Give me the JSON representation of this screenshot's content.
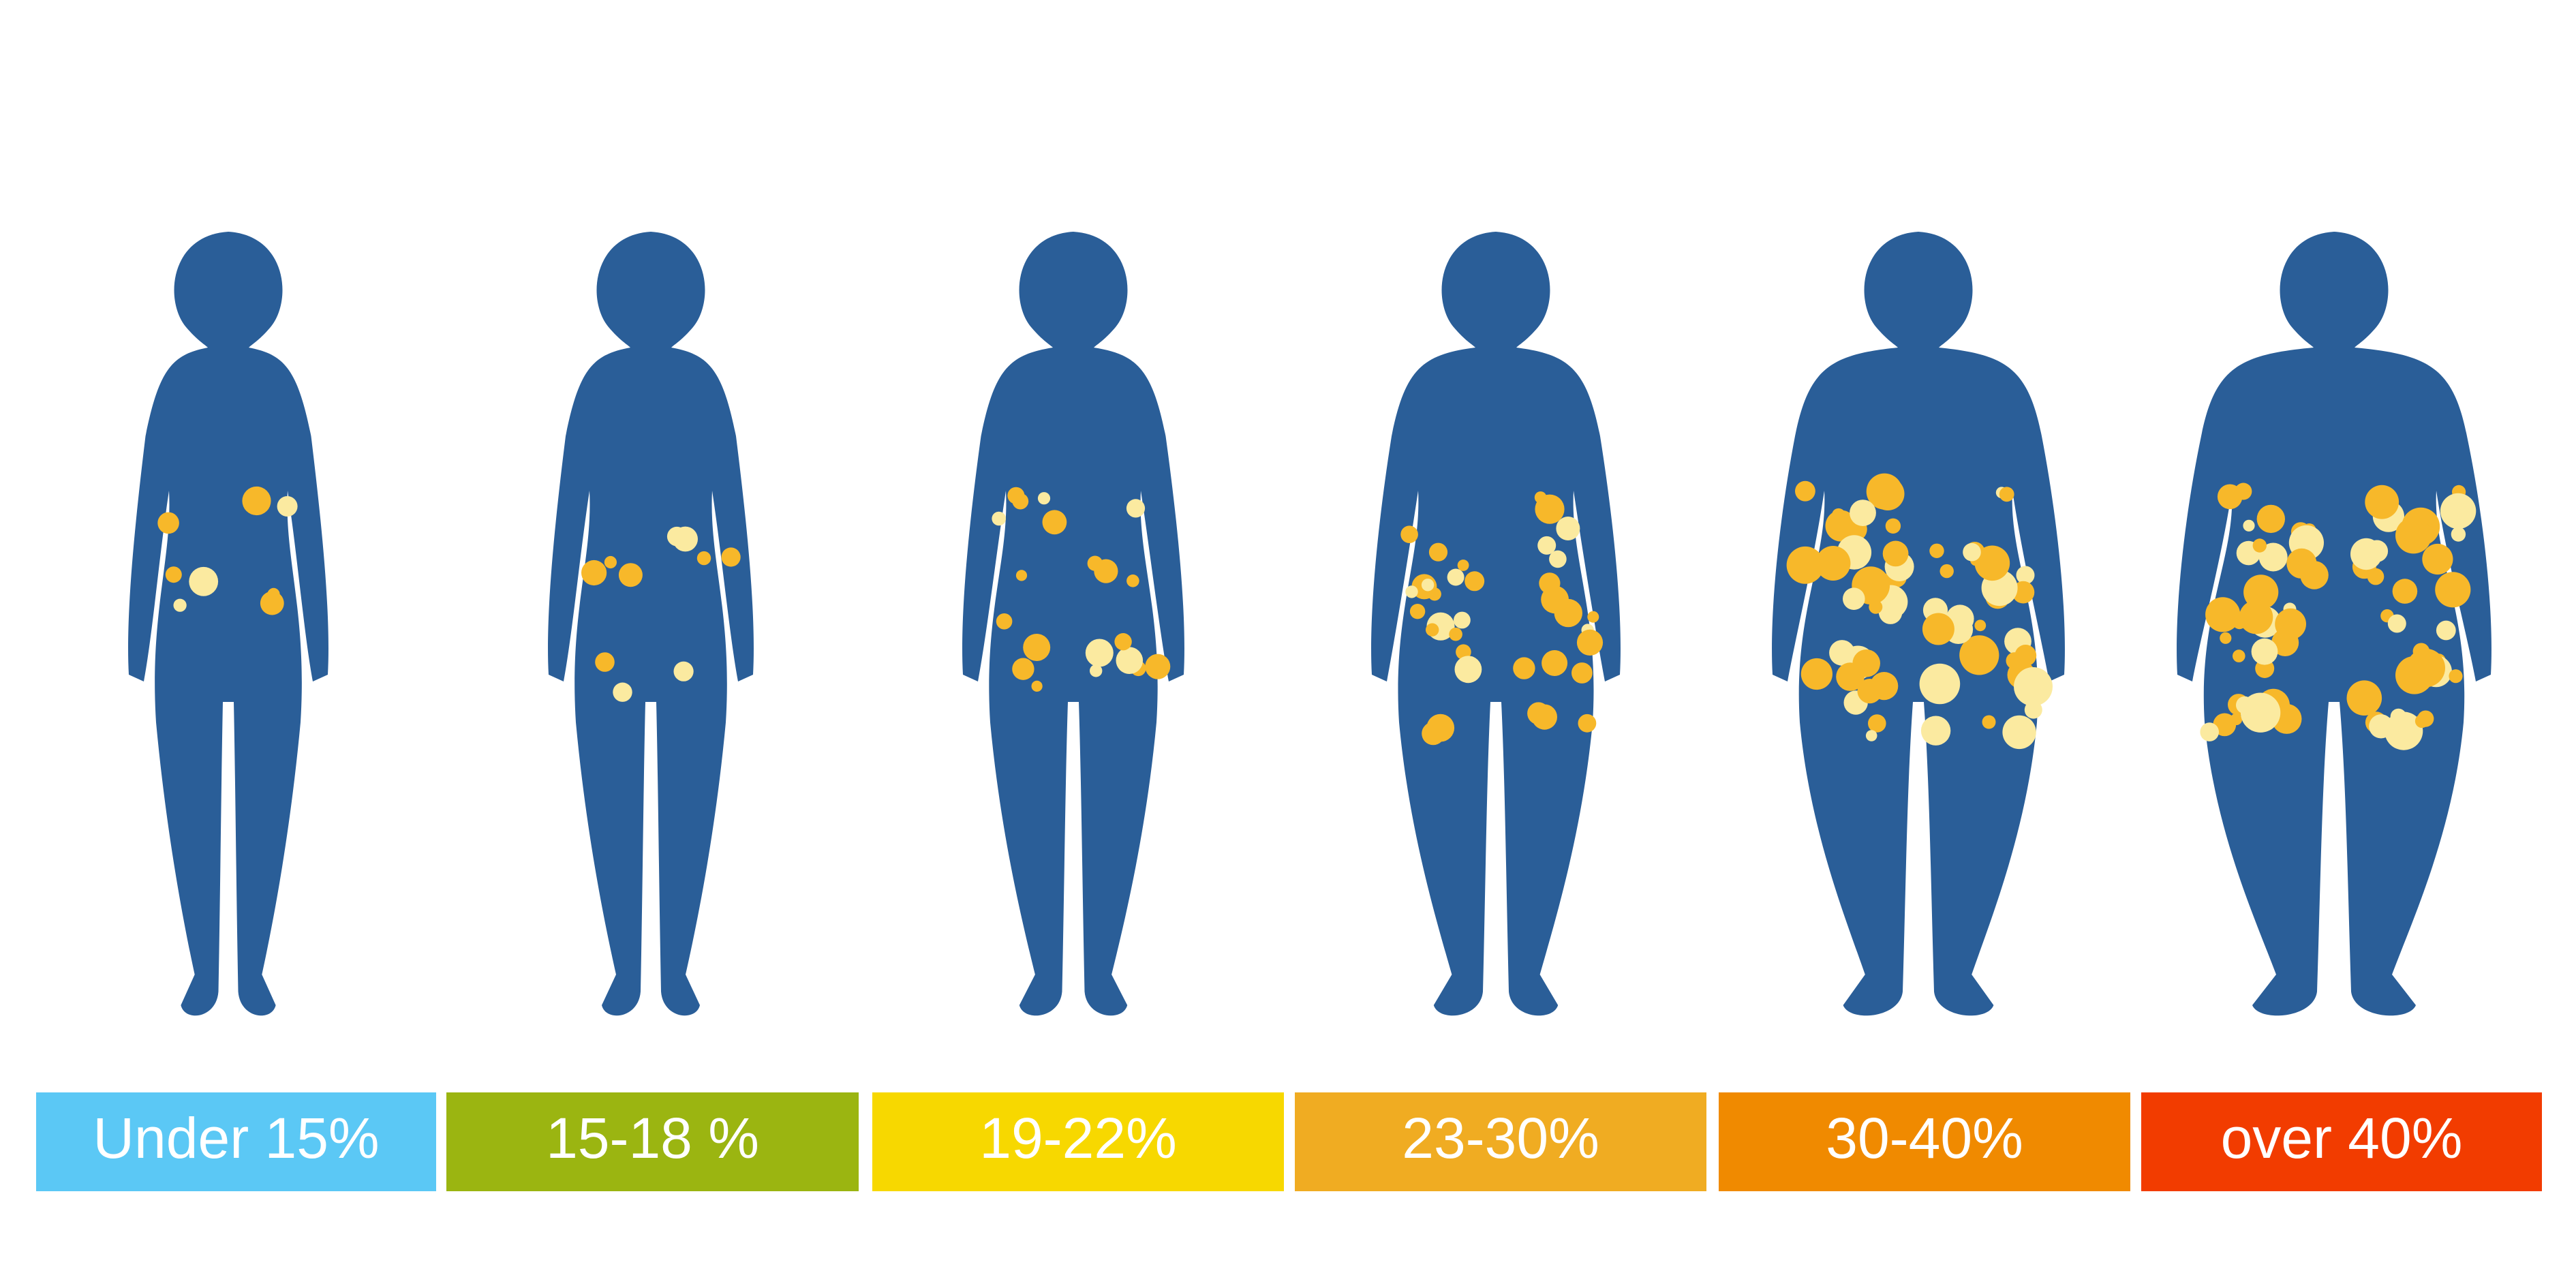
{
  "colors": {
    "background": "#ffffff",
    "silhouette": "#2a5e98",
    "fat_primary": "#f7b82a",
    "fat_light": "#fbeaa0"
  },
  "categories": [
    {
      "label": "Under 15%",
      "color": "#5bc8f5",
      "fat_deposits": 8
    },
    {
      "label": "15-18 %",
      "color": "#9bb511",
      "fat_deposits": 10
    },
    {
      "label": "19-22%",
      "color": "#f7d800",
      "fat_deposits": 20
    },
    {
      "label": "23-30%",
      "color": "#f0ac22",
      "fat_deposits": 36
    },
    {
      "label": "30-40%",
      "color": "#f08a00",
      "fat_deposits": 60
    },
    {
      "label": "over 40%",
      "color": "#f23c00",
      "fat_deposits": 64
    }
  ]
}
